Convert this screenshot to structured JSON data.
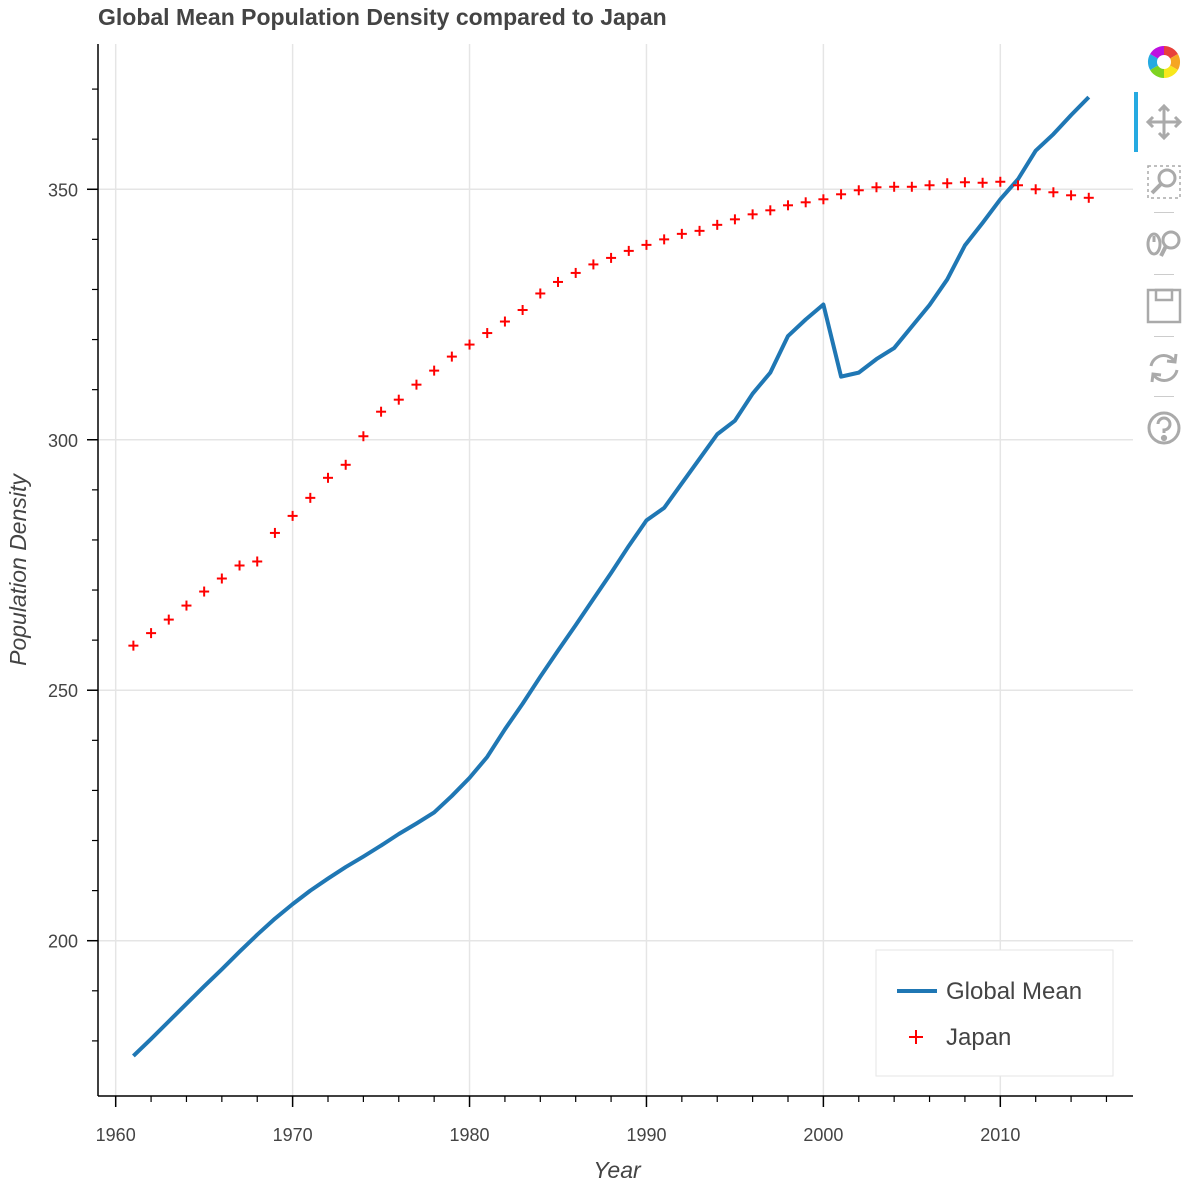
{
  "title": "Global Mean Population Density compared to Japan",
  "chart_data": {
    "type": "line",
    "title": "Global Mean Population Density compared to Japan",
    "xlabel": "Year",
    "ylabel": "Population Density",
    "xlim": [
      1959,
      2017.5
    ],
    "ylim": [
      169,
      379
    ],
    "x_ticks": [
      1960,
      1970,
      1980,
      1990,
      2000,
      2010
    ],
    "y_ticks": [
      200,
      250,
      300,
      350
    ],
    "grid": true,
    "legend_position": "bottom-right",
    "x": [
      1961,
      1962,
      1963,
      1964,
      1965,
      1966,
      1967,
      1968,
      1969,
      1970,
      1971,
      1972,
      1973,
      1974,
      1975,
      1976,
      1977,
      1978,
      1979,
      1980,
      1981,
      1982,
      1983,
      1984,
      1985,
      1986,
      1987,
      1988,
      1989,
      1990,
      1991,
      1992,
      1993,
      1994,
      1995,
      1996,
      1997,
      1998,
      1999,
      2000,
      2001,
      2002,
      2003,
      2004,
      2005,
      2006,
      2007,
      2008,
      2009,
      2010,
      2011,
      2012,
      2013,
      2014,
      2015
    ],
    "series": [
      {
        "name": "Global Mean",
        "kind": "line",
        "color": "#1f77b4",
        "values": [
          177.0,
          180.4,
          183.9,
          187.4,
          190.9,
          194.3,
          197.8,
          201.2,
          204.4,
          207.3,
          210.0,
          212.4,
          214.7,
          216.8,
          219.0,
          221.3,
          223.4,
          225.6,
          228.9,
          232.5,
          236.7,
          242.2,
          247.3,
          252.7,
          257.9,
          263.0,
          268.2,
          273.4,
          278.8,
          283.9,
          286.4,
          291.3,
          296.2,
          301.1,
          303.8,
          309.2,
          313.4,
          320.7,
          324.0,
          327.0,
          312.6,
          313.4,
          316.1,
          318.3,
          322.6,
          326.9,
          332.0,
          338.8,
          343.3,
          348.0,
          352.0,
          357.7,
          361.0,
          364.8,
          368.4
        ]
      },
      {
        "name": "Japan",
        "kind": "scatter",
        "marker": "cross",
        "color": "#ff0000",
        "values": [
          258.9,
          261.4,
          264.1,
          266.9,
          269.7,
          272.3,
          274.9,
          275.7,
          281.4,
          284.8,
          288.4,
          292.4,
          295.0,
          300.7,
          305.6,
          308.0,
          311.0,
          313.8,
          316.6,
          319.0,
          321.3,
          323.6,
          325.9,
          329.2,
          331.5,
          333.3,
          335.0,
          336.3,
          337.7,
          338.9,
          340.0,
          341.1,
          341.7,
          342.9,
          344.0,
          345.0,
          345.8,
          346.8,
          347.4,
          348.0,
          349.0,
          349.8,
          350.4,
          350.5,
          350.5,
          350.8,
          351.2,
          351.4,
          351.3,
          351.5,
          350.8,
          350.0,
          349.4,
          348.8,
          348.3
        ]
      }
    ]
  },
  "toolbar": {
    "items": [
      {
        "name": "logo-icon"
      },
      {
        "name": "pan-icon"
      },
      {
        "name": "box-zoom-icon"
      },
      {
        "name": "wheel-zoom-icon"
      },
      {
        "name": "save-icon"
      },
      {
        "name": "reset-icon"
      },
      {
        "name": "help-icon"
      }
    ],
    "active_color": "#26aae1"
  }
}
